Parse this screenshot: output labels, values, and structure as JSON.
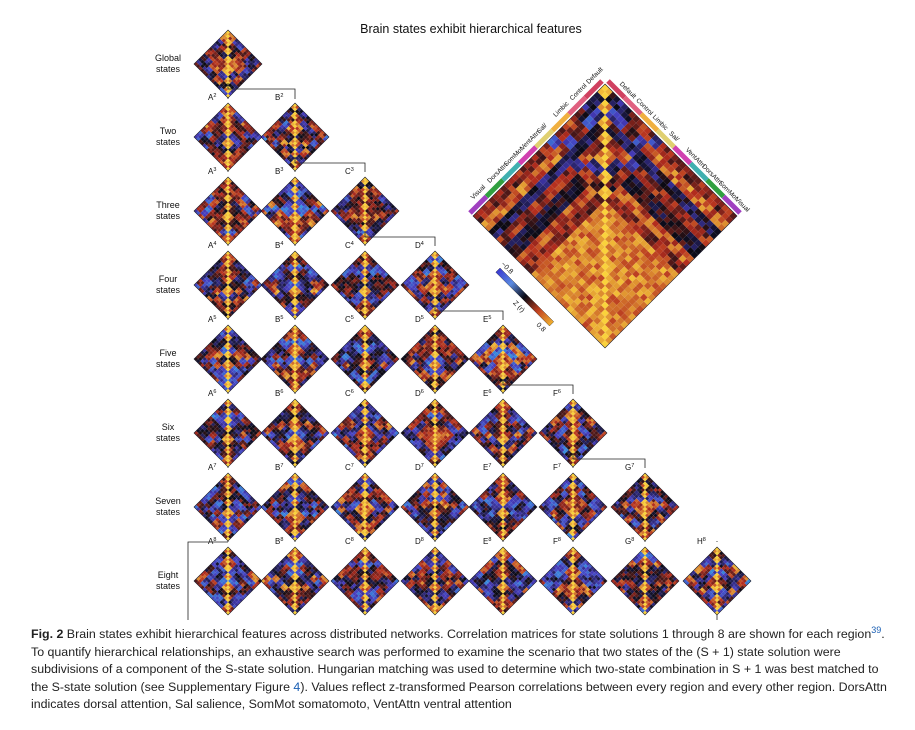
{
  "figure": {
    "title": "Brain states exhibit hierarchical features",
    "rows": [
      {
        "label": [
          "Global",
          "states"
        ],
        "states": [
          ""
        ]
      },
      {
        "label": [
          "Two",
          "states"
        ],
        "states": [
          "A2",
          "B2"
        ]
      },
      {
        "label": [
          "Three",
          "states"
        ],
        "states": [
          "A3",
          "B3",
          "C3"
        ]
      },
      {
        "label": [
          "Four",
          "states"
        ],
        "states": [
          "A4",
          "B4",
          "C4",
          "D4"
        ]
      },
      {
        "label": [
          "Five",
          "states"
        ],
        "states": [
          "A5",
          "B5",
          "C5",
          "D5",
          "E5"
        ]
      },
      {
        "label": [
          "Six",
          "states"
        ],
        "states": [
          "A6",
          "B6",
          "C6",
          "D6",
          "E6",
          "F6"
        ]
      },
      {
        "label": [
          "Seven",
          "states"
        ],
        "states": [
          "A7",
          "B7",
          "C7",
          "D7",
          "E7",
          "F7",
          "G7"
        ]
      },
      {
        "label": [
          "Eight",
          "states"
        ],
        "states": [
          "A8",
          "B8",
          "C8",
          "D8",
          "E8",
          "F8",
          "G8",
          "H8"
        ]
      }
    ],
    "splits": [
      {
        "row": 1,
        "from": 0,
        "to": 1
      },
      {
        "row": 2,
        "from": 1,
        "to": 2
      },
      {
        "row": 3,
        "from": 2,
        "to": 3
      },
      {
        "row": 4,
        "from": 3,
        "to": 4
      },
      {
        "row": 5,
        "from": 4,
        "to": 5
      },
      {
        "row": 6,
        "from": 5,
        "to": 6
      },
      {
        "row": 7,
        "from": 0,
        "to": 7
      }
    ],
    "networks_left": [
      "Visual",
      "DorsAttn",
      "SomMot",
      "VentAttn",
      "Sal/",
      "Limbic",
      "Control",
      "Default"
    ],
    "networks_right": [
      "Default",
      "Control",
      "Limbic",
      "Sal/",
      "VentAttn",
      "DorsAttn",
      "SomMot",
      "Visual"
    ],
    "colorbar": {
      "min_label": "−0.8",
      "max_label": "0.8",
      "title": "Z (r)"
    },
    "colors": {
      "low": "#3a3ad0",
      "mid": "#0a0a14",
      "high": "#f0b030"
    }
  },
  "caption": {
    "label": "Fig. 2",
    "part1": " Brain states exhibit hierarchical features across distributed networks. Correlation matrices for state solutions 1 through 8 are shown for each region",
    "ref": "39",
    "part2": ". To quantify hierarchical relationships, an exhaustive search was performed to examine the scenario that two states of the (S + 1) state solution were subdivisions of a component of the S-state solution. Hungarian matching was used to determine which two-state combination in S + 1 was best matched to the S-state solution (see Supplementary Figure ",
    "figref": "4",
    "part3": "). Values reflect z-transformed Pearson correlations between every region and every other region. DorsAttn indicates dorsal attention, Sal salience, SomMot somatomoto, VentAttn ventral attention"
  }
}
